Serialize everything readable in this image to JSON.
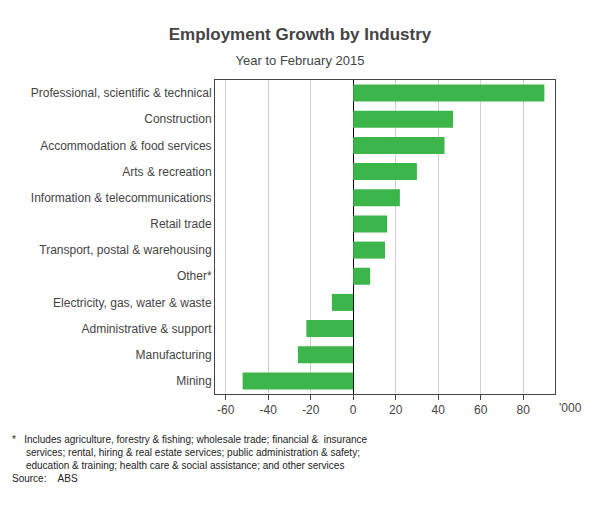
{
  "chart_data": {
    "type": "bar",
    "orientation": "horizontal",
    "title": "Employment Growth by Industry",
    "subtitle": "Year to February 2015",
    "categories": [
      "Professional, scientific & technical",
      "Construction",
      "Accommodation & food services",
      "Arts & recreation",
      "Information & telecommunications",
      "Retail trade",
      "Transport, postal & warehousing",
      "Other*",
      "Electricity, gas, water & waste",
      "Administrative & support",
      "Manufacturing",
      "Mining"
    ],
    "values": [
      90,
      47,
      43,
      30,
      22,
      16,
      15,
      8,
      -10,
      -22,
      -26,
      -52
    ],
    "color": "#3cb54a",
    "xlim": [
      -65,
      95
    ],
    "xticks": [
      -60,
      -40,
      -20,
      0,
      20,
      40,
      60,
      80
    ],
    "grid": true,
    "annotations": [
      "'000"
    ],
    "footnote": [
      "*   Includes agriculture, forestry & fishing; wholesale trade; financial &  insurance",
      "     services; rental, hiring & real estate services; public administration & safety;",
      "     education & training; health care & social assistance; and other services",
      "Source:    ABS"
    ]
  }
}
